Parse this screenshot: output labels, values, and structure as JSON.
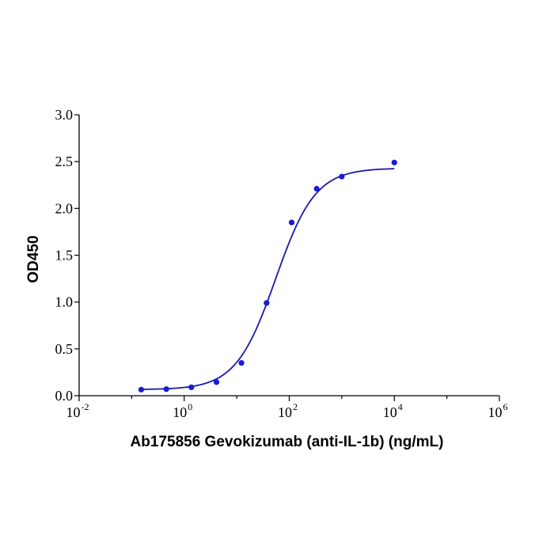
{
  "chart_data": {
    "type": "scatter",
    "title": "",
    "xlabel": "Ab175856 Gevokizumab (anti-IL-1b) (ng/mL)",
    "ylabel": "OD450",
    "x_scale": "log10",
    "xlim": [
      0.01,
      1000000
    ],
    "ylim": [
      0,
      3.0
    ],
    "grid": false,
    "x_ticks": [
      {
        "base": "10",
        "exp": "-2"
      },
      {
        "base": "10",
        "exp": "0"
      },
      {
        "base": "10",
        "exp": "2"
      },
      {
        "base": "10",
        "exp": "4"
      },
      {
        "base": "10",
        "exp": "6"
      }
    ],
    "y_ticks": [
      "0.0",
      "0.5",
      "1.0",
      "1.5",
      "2.0",
      "2.5",
      "3.0"
    ],
    "series": [
      {
        "color": "#1a1ad6",
        "x": [
          0.152,
          0.457,
          1.37,
          4.12,
          12.3,
          37.0,
          111,
          333,
          1000,
          10000
        ],
        "y": [
          0.065,
          0.07,
          0.09,
          0.145,
          0.35,
          0.99,
          1.85,
          2.21,
          2.34,
          2.49
        ]
      }
    ],
    "fit_curve": {
      "color": "#1a1aa8",
      "model": "4PL",
      "bottom": 0.065,
      "top": 2.43,
      "ec50": 55,
      "hill": 1.15,
      "x_range": [
        0.152,
        10000
      ]
    }
  }
}
